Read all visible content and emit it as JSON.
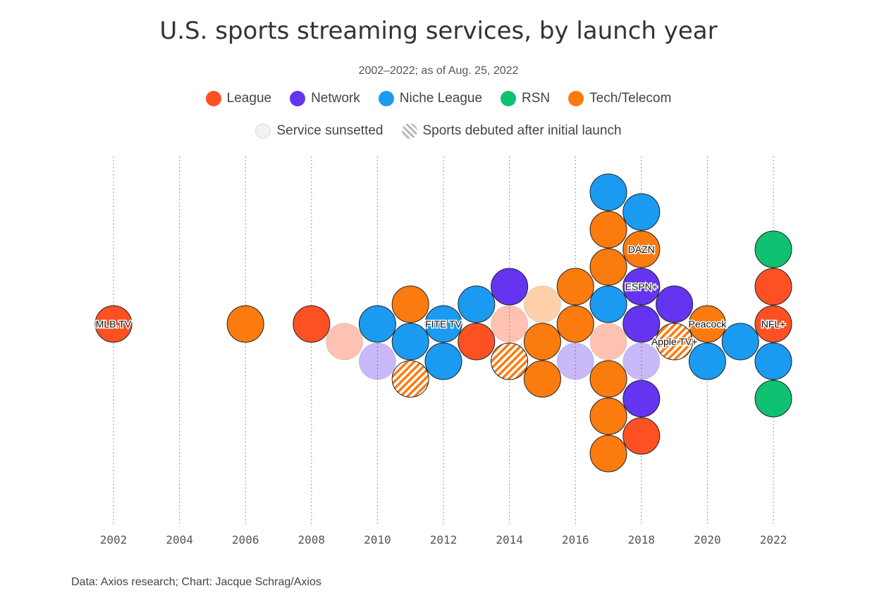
{
  "chart_data": {
    "type": "scatter",
    "subtype": "beeswarm",
    "title": "U.S. sports streaming services, by launch year",
    "subtitle": "2002–2022; as of Aug. 25, 2022",
    "x_ticks": [
      "2002",
      "2004",
      "2006",
      "2008",
      "2010",
      "2012",
      "2014",
      "2016",
      "2018",
      "2020",
      "2022"
    ],
    "xlim": [
      2002,
      2022
    ],
    "legend": {
      "categories": [
        {
          "name": "League",
          "color": "#fd5124"
        },
        {
          "name": "Network",
          "color": "#6534f0"
        },
        {
          "name": "Niche League",
          "color": "#1a9bf1"
        },
        {
          "name": "RSN",
          "color": "#10c172"
        },
        {
          "name": "Tech/Telecom",
          "color": "#fc7b0e"
        }
      ],
      "styles": [
        {
          "name": "Service sunsetted",
          "style": "sunset"
        },
        {
          "name": "Sports debuted after initial launch",
          "style": "hatch"
        }
      ]
    },
    "services": [
      {
        "x": 2002,
        "cat": "League",
        "label": "MLB.TV"
      },
      {
        "x": 2006,
        "cat": "Tech/Telecom"
      },
      {
        "x": 2008,
        "cat": "League"
      },
      {
        "x": 2009,
        "cat": "League",
        "sunset": true
      },
      {
        "x": 2010,
        "cat": "Niche League"
      },
      {
        "x": 2010,
        "cat": "Network",
        "sunset": true
      },
      {
        "x": 2011,
        "cat": "Niche League"
      },
      {
        "x": 2011,
        "cat": "Tech/Telecom"
      },
      {
        "x": 2011,
        "cat": "Tech/Telecom",
        "hatch": true
      },
      {
        "x": 2012,
        "cat": "Niche League",
        "label": "FITE TV"
      },
      {
        "x": 2012,
        "cat": "Niche League"
      },
      {
        "x": 2013,
        "cat": "League"
      },
      {
        "x": 2013,
        "cat": "Niche League"
      },
      {
        "x": 2014,
        "cat": "League",
        "sunset": true
      },
      {
        "x": 2014,
        "cat": "Tech/Telecom",
        "hatch": true
      },
      {
        "x": 2014,
        "cat": "Network"
      },
      {
        "x": 2015,
        "cat": "Tech/Telecom"
      },
      {
        "x": 2015,
        "cat": "Tech/Telecom",
        "sunset": true
      },
      {
        "x": 2015,
        "cat": "Tech/Telecom"
      },
      {
        "x": 2016,
        "cat": "Tech/Telecom"
      },
      {
        "x": 2016,
        "cat": "Network",
        "sunset": true
      },
      {
        "x": 2016,
        "cat": "Tech/Telecom"
      },
      {
        "x": 2017,
        "cat": "League",
        "sunset": true
      },
      {
        "x": 2017,
        "cat": "Niche League"
      },
      {
        "x": 2017,
        "cat": "Tech/Telecom"
      },
      {
        "x": 2017,
        "cat": "Tech/Telecom"
      },
      {
        "x": 2017,
        "cat": "Tech/Telecom"
      },
      {
        "x": 2017,
        "cat": "Tech/Telecom"
      },
      {
        "x": 2017,
        "cat": "Tech/Telecom"
      },
      {
        "x": 2017,
        "cat": "Niche League"
      },
      {
        "x": 2018,
        "cat": "Network"
      },
      {
        "x": 2018,
        "cat": "Network",
        "sunset": true
      },
      {
        "x": 2018,
        "cat": "Network",
        "label": "ESPN+"
      },
      {
        "x": 2018,
        "cat": "Network"
      },
      {
        "x": 2018,
        "cat": "Tech/Telecom",
        "label": "DAZN"
      },
      {
        "x": 2018,
        "cat": "League"
      },
      {
        "x": 2018,
        "cat": "Niche League"
      },
      {
        "x": 2019,
        "cat": "Tech/Telecom",
        "hatch": true,
        "label": "Apple TV+"
      },
      {
        "x": 2019,
        "cat": "Network"
      },
      {
        "x": 2020,
        "cat": "Tech/Telecom",
        "label": "Peacock"
      },
      {
        "x": 2020,
        "cat": "Niche League"
      },
      {
        "x": 2021,
        "cat": "Niche League"
      },
      {
        "x": 2022,
        "cat": "League",
        "label": "NFL+"
      },
      {
        "x": 2022,
        "cat": "Niche League"
      },
      {
        "x": 2022,
        "cat": "League"
      },
      {
        "x": 2022,
        "cat": "RSN"
      },
      {
        "x": 2022,
        "cat": "RSN"
      }
    ],
    "grid": "vertical dotted",
    "source": "Data: Axios research; Chart: Jacque Schrag/Axios"
  }
}
